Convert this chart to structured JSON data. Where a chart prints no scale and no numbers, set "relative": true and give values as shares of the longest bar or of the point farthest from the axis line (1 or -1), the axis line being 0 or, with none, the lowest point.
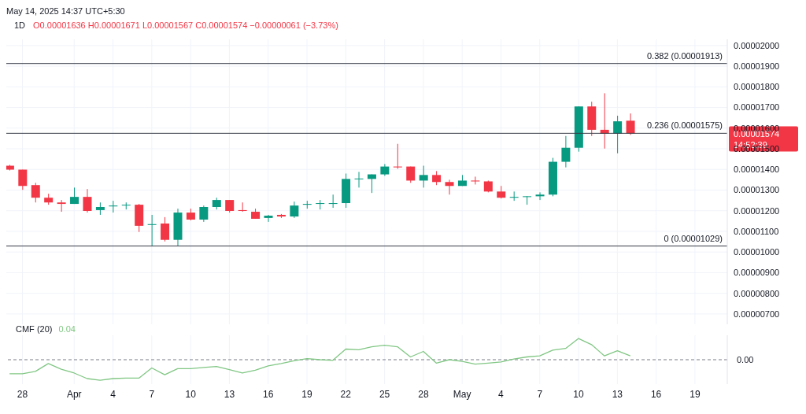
{
  "chart_data": [
    {
      "type": "candlestick",
      "title": "1D",
      "subtitle": "O0.00001636 H0.00001671 L0.00001567 C0.00001574 −0.00000061 (−3.73%)",
      "annotations": [
        "May 14, 2025 14:37 UTC+5:30",
        "0.00001574",
        "14:52:39"
      ],
      "x": [
        "2025-03-27",
        "2025-03-28",
        "2025-03-29",
        "2025-03-30",
        "2025-03-31",
        "2025-04-01",
        "2025-04-02",
        "2025-04-03",
        "2025-04-04",
        "2025-04-05",
        "2025-04-06",
        "2025-04-07",
        "2025-04-08",
        "2025-04-09",
        "2025-04-10",
        "2025-04-11",
        "2025-04-12",
        "2025-04-13",
        "2025-04-14",
        "2025-04-15",
        "2025-04-16",
        "2025-04-17",
        "2025-04-18",
        "2025-04-19",
        "2025-04-20",
        "2025-04-21",
        "2025-04-22",
        "2025-04-23",
        "2025-04-24",
        "2025-04-25",
        "2025-04-26",
        "2025-04-27",
        "2025-04-28",
        "2025-04-29",
        "2025-04-30",
        "2025-05-01",
        "2025-05-02",
        "2025-05-03",
        "2025-05-04",
        "2025-05-05",
        "2025-05-06",
        "2025-05-07",
        "2025-05-08",
        "2025-05-09",
        "2025-05-10",
        "2025-05-11",
        "2025-05-12",
        "2025-05-13",
        "2025-05-14"
      ],
      "ohlc": [
        [
          1.418e-05,
          1.422e-05,
          1.395e-05,
          1.399e-05
        ],
        [
          1.399e-05,
          1.399e-05,
          1.301e-05,
          1.32e-05
        ],
        [
          1.324e-05,
          1.335e-05,
          1.24e-05,
          1.263e-05
        ],
        [
          1.263e-05,
          1.282e-05,
          1.229e-05,
          1.24e-05
        ],
        [
          1.24e-05,
          1.252e-05,
          1.195e-05,
          1.233e-05
        ],
        [
          1.233e-05,
          1.312e-05,
          1.233e-05,
          1.267e-05
        ],
        [
          1.267e-05,
          1.305e-05,
          1.191e-05,
          1.199e-05
        ],
        [
          1.203e-05,
          1.24e-05,
          1.18e-05,
          1.218e-05
        ],
        [
          1.221e-05,
          1.248e-05,
          1.191e-05,
          1.225e-05
        ],
        [
          1.227e-05,
          1.24e-05,
          1.206e-05,
          1.229e-05
        ],
        [
          1.229e-05,
          1.233e-05,
          1.097e-05,
          1.127e-05
        ],
        [
          1.131e-05,
          1.18e-05,
          1.029e-05,
          1.135e-05
        ],
        [
          1.138e-05,
          1.169e-05,
          1.051e-05,
          1.059e-05
        ],
        [
          1.059e-05,
          1.21e-05,
          1.03e-05,
          1.191e-05
        ],
        [
          1.191e-05,
          1.21e-05,
          1.153e-05,
          1.157e-05
        ],
        [
          1.157e-05,
          1.225e-05,
          1.146e-05,
          1.218e-05
        ],
        [
          1.218e-05,
          1.263e-05,
          1.206e-05,
          1.252e-05
        ],
        [
          1.252e-05,
          1.252e-05,
          1.191e-05,
          1.199e-05
        ],
        [
          1.203e-05,
          1.24e-05,
          1.195e-05,
          1.199e-05
        ],
        [
          1.195e-05,
          1.21e-05,
          1.161e-05,
          1.161e-05
        ],
        [
          1.165e-05,
          1.18e-05,
          1.146e-05,
          1.176e-05
        ],
        [
          1.18e-05,
          1.184e-05,
          1.165e-05,
          1.172e-05
        ],
        [
          1.172e-05,
          1.244e-05,
          1.165e-05,
          1.225e-05
        ],
        [
          1.229e-05,
          1.248e-05,
          1.21e-05,
          1.233e-05
        ],
        [
          1.233e-05,
          1.252e-05,
          1.206e-05,
          1.237e-05
        ],
        [
          1.233e-05,
          1.278e-05,
          1.214e-05,
          1.237e-05
        ],
        [
          1.237e-05,
          1.38e-05,
          1.214e-05,
          1.354e-05
        ],
        [
          1.354e-05,
          1.388e-05,
          1.312e-05,
          1.356e-05
        ],
        [
          1.354e-05,
          1.376e-05,
          1.286e-05,
          1.376e-05
        ],
        [
          1.376e-05,
          1.426e-05,
          1.369e-05,
          1.414e-05
        ],
        [
          1.414e-05,
          1.524e-05,
          1.403e-05,
          1.41e-05
        ],
        [
          1.414e-05,
          1.414e-05,
          1.335e-05,
          1.346e-05
        ],
        [
          1.346e-05,
          1.418e-05,
          1.312e-05,
          1.373e-05
        ],
        [
          1.373e-05,
          1.392e-05,
          1.324e-05,
          1.339e-05
        ],
        [
          1.339e-05,
          1.35e-05,
          1.278e-05,
          1.32e-05
        ],
        [
          1.32e-05,
          1.373e-05,
          1.32e-05,
          1.346e-05
        ],
        [
          1.346e-05,
          1.365e-05,
          1.327e-05,
          1.342e-05
        ],
        [
          1.342e-05,
          1.346e-05,
          1.289e-05,
          1.293e-05
        ],
        [
          1.293e-05,
          1.32e-05,
          1.259e-05,
          1.263e-05
        ],
        [
          1.263e-05,
          1.293e-05,
          1.248e-05,
          1.267e-05
        ],
        [
          1.267e-05,
          1.27e-05,
          1.229e-05,
          1.27e-05
        ],
        [
          1.27e-05,
          1.289e-05,
          1.252e-05,
          1.278e-05
        ],
        [
          1.278e-05,
          1.456e-05,
          1.27e-05,
          1.437e-05
        ],
        [
          1.437e-05,
          1.562e-05,
          1.41e-05,
          1.505e-05
        ],
        [
          1.505e-05,
          1.705e-05,
          1.486e-05,
          1.705e-05
        ],
        [
          1.705e-05,
          1.728e-05,
          1.562e-05,
          1.592e-05
        ],
        [
          1.592e-05,
          1.769e-05,
          1.501e-05,
          1.573e-05
        ],
        [
          1.573e-05,
          1.66e-05,
          1.478e-05,
          1.633e-05
        ],
        [
          1.636e-05,
          1.671e-05,
          1.567e-05,
          1.574e-05
        ]
      ],
      "colors": [
        "#f23645",
        "#f23645",
        "#f23645",
        "#f23645",
        "#f23645",
        "#089981",
        "#f23645",
        "#089981",
        "#089981",
        "#089981",
        "#f23645",
        "#089981",
        "#f23645",
        "#089981",
        "#f23645",
        "#089981",
        "#089981",
        "#f23645",
        "#f23645",
        "#f23645",
        "#089981",
        "#f23645",
        "#089981",
        "#089981",
        "#089981",
        "#089981",
        "#089981",
        "#089981",
        "#089981",
        "#089981",
        "#f23645",
        "#f23645",
        "#089981",
        "#f23645",
        "#f23645",
        "#089981",
        "#f23645",
        "#f23645",
        "#f23645",
        "#089981",
        "#089981",
        "#089981",
        "#089981",
        "#089981",
        "#089981",
        "#f23645",
        "#f23645",
        "#089981",
        "#f23645"
      ],
      "xlim": [
        "2025-03-26T18:00",
        "2025-05-21T12:00"
      ],
      "xticks": [
        {
          "value": "2025-03-28",
          "label": null
        },
        {
          "value": "2025-04-01",
          "label": null
        },
        {
          "value": "2025-04-04",
          "label": null
        },
        {
          "value": "2025-04-07",
          "label": null
        },
        {
          "value": "2025-04-10",
          "label": null
        },
        {
          "value": "2025-04-13",
          "label": null
        },
        {
          "value": "2025-04-16",
          "label": null
        },
        {
          "value": "2025-04-19",
          "label": null
        },
        {
          "value": "2025-04-22",
          "label": null
        },
        {
          "value": "2025-04-25",
          "label": null
        },
        {
          "value": "2025-04-28",
          "label": null
        },
        {
          "value": "2025-05-01",
          "label": null
        },
        {
          "value": "2025-05-04",
          "label": null
        },
        {
          "value": "2025-05-07",
          "label": null
        },
        {
          "value": "2025-05-10",
          "label": null
        },
        {
          "value": "2025-05-13",
          "label": null
        },
        {
          "value": "2025-05-16",
          "label": null
        },
        {
          "value": "2025-05-19",
          "label": null
        }
      ],
      "ylim": [
        6.5e-06,
        2.03e-05
      ],
      "yticks": [
        {
          "value": 7e-06,
          "label": "0.00000700"
        },
        {
          "value": 8e-06,
          "label": "0.00000800"
        },
        {
          "value": 9e-06,
          "label": "0.00000900"
        },
        {
          "value": 1e-05,
          "label": "0.00001000"
        },
        {
          "value": 1.1e-05,
          "label": "0.00001100"
        },
        {
          "value": 1.2e-05,
          "label": "0.00001200"
        },
        {
          "value": 1.3e-05,
          "label": "0.00001300"
        },
        {
          "value": 1.4e-05,
          "label": "0.00001400"
        },
        {
          "value": 1.5e-05,
          "label": "0.00001500"
        },
        {
          "value": 1.6e-05,
          "label": "0.00001600"
        },
        {
          "value": 1.7e-05,
          "label": "0.00001700"
        },
        {
          "value": 1.8e-05,
          "label": "0.00001800"
        },
        {
          "value": 1.9e-05,
          "label": "0.00001900"
        },
        {
          "value": 2e-05,
          "label": "0.00002000"
        }
      ],
      "grid": true,
      "tick_labels": "y",
      "ref_lines": [
        {
          "axis": "y",
          "value": 1.913e-05,
          "label": "0.382 (0.00001913)",
          "color": "#363a45"
        },
        {
          "axis": "y",
          "value": 1.575e-05,
          "label": "0.236 (0.00001575)",
          "color": "#363a45"
        },
        {
          "axis": "y",
          "value": 1.029e-05,
          "label": "0 (0.00001029)",
          "color": "#363a45"
        }
      ]
    },
    {
      "type": "line",
      "title": "CMF (20)",
      "annotations": [
        "0.04"
      ],
      "x": [
        "2025-03-27",
        "2025-03-28",
        "2025-03-29",
        "2025-03-30",
        "2025-03-31",
        "2025-04-01",
        "2025-04-02",
        "2025-04-03",
        "2025-04-04",
        "2025-04-05",
        "2025-04-06",
        "2025-04-07",
        "2025-04-08",
        "2025-04-09",
        "2025-04-10",
        "2025-04-11",
        "2025-04-12",
        "2025-04-13",
        "2025-04-14",
        "2025-04-15",
        "2025-04-16",
        "2025-04-17",
        "2025-04-18",
        "2025-04-19",
        "2025-04-20",
        "2025-04-21",
        "2025-04-22",
        "2025-04-23",
        "2025-04-24",
        "2025-04-25",
        "2025-04-26",
        "2025-04-27",
        "2025-04-28",
        "2025-04-29",
        "2025-04-30",
        "2025-05-01",
        "2025-05-02",
        "2025-05-03",
        "2025-05-04",
        "2025-05-05",
        "2025-05-06",
        "2025-05-07",
        "2025-05-08",
        "2025-05-09",
        "2025-05-10",
        "2025-05-11",
        "2025-05-12",
        "2025-05-13",
        "2025-05-14"
      ],
      "series": [
        {
          "color": "#81c784",
          "values": [
            -0.66,
            -0.66,
            -0.55,
            -0.18,
            -0.45,
            -0.63,
            -0.89,
            -0.97,
            -0.89,
            -0.87,
            -0.87,
            -0.39,
            -0.71,
            -0.42,
            -0.42,
            -0.37,
            -0.32,
            -0.47,
            -0.63,
            -0.5,
            -0.29,
            -0.18,
            -0.05,
            0.05,
            0,
            -0.03,
            0.5,
            0.47,
            0.61,
            0.68,
            0.61,
            0.13,
            0.39,
            -0.16,
            0,
            -0.08,
            -0.21,
            -0.16,
            -0.11,
            0.03,
            0.13,
            0.18,
            0.45,
            0.53,
            1,
            0.71,
            0.18,
            0.42,
            0.18
          ]
        }
      ],
      "relative": true,
      "xlim": [
        "2025-03-26T18:00",
        "2025-05-21T12:00"
      ],
      "xticks": [
        {
          "value": "2025-03-28",
          "label": "28"
        },
        {
          "value": "2025-04-01",
          "label": "Apr"
        },
        {
          "value": "2025-04-04",
          "label": "4"
        },
        {
          "value": "2025-04-07",
          "label": "7"
        },
        {
          "value": "2025-04-10",
          "label": "10"
        },
        {
          "value": "2025-04-13",
          "label": "13"
        },
        {
          "value": "2025-04-16",
          "label": "16"
        },
        {
          "value": "2025-04-19",
          "label": "19"
        },
        {
          "value": "2025-04-22",
          "label": "22"
        },
        {
          "value": "2025-04-25",
          "label": "25"
        },
        {
          "value": "2025-04-28",
          "label": "28"
        },
        {
          "value": "2025-05-01",
          "label": "May"
        },
        {
          "value": "2025-05-04",
          "label": "4"
        },
        {
          "value": "2025-05-07",
          "label": "7"
        },
        {
          "value": "2025-05-10",
          "label": "10"
        },
        {
          "value": "2025-05-13",
          "label": "13"
        },
        {
          "value": "2025-05-16",
          "label": "16"
        },
        {
          "value": "2025-05-19",
          "label": "19"
        }
      ],
      "grid": "x",
      "tick_labels": "x",
      "ref_lines": [
        {
          "axis": "y",
          "value": 0,
          "label": "0.00",
          "color": "#787b86",
          "line_style": "dashed"
        }
      ]
    }
  ]
}
